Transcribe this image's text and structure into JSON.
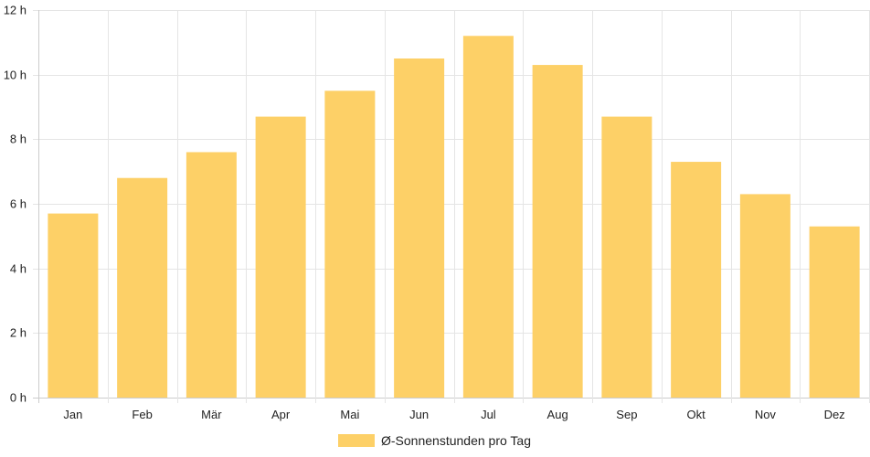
{
  "chart_data": {
    "type": "bar",
    "categories": [
      "Jan",
      "Feb",
      "Mär",
      "Apr",
      "Mai",
      "Jun",
      "Jul",
      "Aug",
      "Sep",
      "Okt",
      "Nov",
      "Dez"
    ],
    "series": [
      {
        "name": "Ø-Sonnenstunden pro Tag",
        "values": [
          5.7,
          6.8,
          7.6,
          8.7,
          9.5,
          10.5,
          11.2,
          10.3,
          8.7,
          7.3,
          6.3,
          5.3
        ],
        "color": "#fdd067"
      }
    ],
    "ylim": [
      0,
      12
    ],
    "yticks": [
      "0 h",
      "2 h",
      "4 h",
      "6 h",
      "8 h",
      "10 h",
      "12 h"
    ],
    "grid": true,
    "legend": "bottom-center",
    "grid_color": "#e5e5e5",
    "axis_color": "#cccccc"
  }
}
